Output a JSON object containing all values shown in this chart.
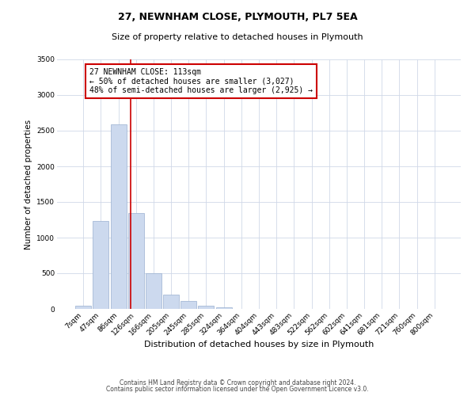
{
  "title": "27, NEWNHAM CLOSE, PLYMOUTH, PL7 5EA",
  "subtitle": "Size of property relative to detached houses in Plymouth",
  "xlabel": "Distribution of detached houses by size in Plymouth",
  "ylabel": "Number of detached properties",
  "bar_labels": [
    "7sqm",
    "47sqm",
    "86sqm",
    "126sqm",
    "166sqm",
    "205sqm",
    "245sqm",
    "285sqm",
    "324sqm",
    "364sqm",
    "404sqm",
    "443sqm",
    "483sqm",
    "522sqm",
    "562sqm",
    "602sqm",
    "641sqm",
    "681sqm",
    "721sqm",
    "760sqm",
    "800sqm"
  ],
  "bar_values": [
    50,
    1230,
    2590,
    1340,
    495,
    200,
    110,
    45,
    20,
    5,
    0,
    0,
    0,
    0,
    0,
    0,
    0,
    0,
    0,
    0,
    5
  ],
  "bar_color": "#ccd9ee",
  "bar_edge_color": "#9ab0d0",
  "vline_x": 2.68,
  "vline_color": "#cc0000",
  "annotation_text": "27 NEWNHAM CLOSE: 113sqm\n← 50% of detached houses are smaller (3,027)\n48% of semi-detached houses are larger (2,925) →",
  "annotation_box_color": "#ffffff",
  "annotation_box_edge_color": "#cc0000",
  "ylim": [
    0,
    3500
  ],
  "yticks": [
    0,
    500,
    1000,
    1500,
    2000,
    2500,
    3000,
    3500
  ],
  "footer_line1": "Contains HM Land Registry data © Crown copyright and database right 2024.",
  "footer_line2": "Contains public sector information licensed under the Open Government Licence v3.0.",
  "background_color": "#ffffff",
  "grid_color": "#d0d8e8",
  "title_fontsize": 9,
  "subtitle_fontsize": 8,
  "xlabel_fontsize": 8,
  "ylabel_fontsize": 7.5,
  "tick_fontsize": 6.5,
  "annotation_fontsize": 7,
  "footer_fontsize": 5.5
}
